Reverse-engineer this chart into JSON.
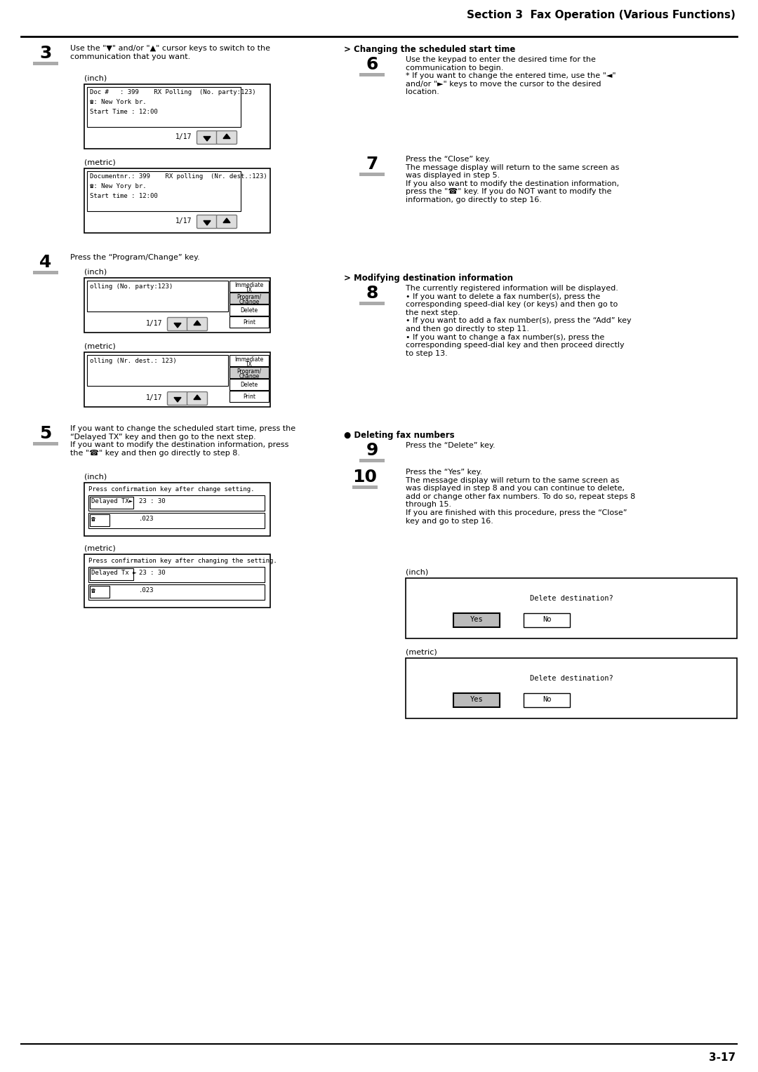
{
  "title": "Section 3  Fax Operation (Various Functions)",
  "page_num": "3-17",
  "bg": "#ffffff",
  "step3_text": "Use the \"▼\" and/or \"▲\" cursor keys to switch to the\ncommunication that you want.",
  "s3_inch": [
    "Doc #   : 399    RX Polling  (No. party:123)",
    "☎: New York br.",
    "Start Time : 12:00"
  ],
  "s3_metric": [
    "Documentnr.: 399    RX polling  (Nr. dest.:123)",
    "☎: New Yory br.",
    "Start time : 12:00"
  ],
  "step4_text": "Press the “Program/Change” key.",
  "s4_inch": [
    "olling (No. party:123)"
  ],
  "s4_metric": [
    "olling (Nr. dest.: 123)"
  ],
  "menu_items": [
    "Immediate\nTX",
    "Program/\nChange",
    "Delete",
    "Print"
  ],
  "step5_text": "If you want to change the scheduled start time, press the\n“Delayed TX” key and then go to the next step.\nIf you want to modify the destination information, press\nthe \"☎\" key and then go directly to step 8.",
  "s5_inch_top": "Press confirmation key after change setting.",
  "s5_inch_btn": "Delayed TX►",
  "s5_inch_time": "23 : 30",
  "s5_inch_fax": "☎",
  "s5_inch_num": ".023",
  "s5_metric_top": "Press confirmation key after changing the setting.",
  "s5_metric_btn": "Delayed Tx ►",
  "s5_metric_time": "23 : 30",
  "s5_metric_fax": "☎",
  "s5_metric_num": ".023",
  "step6_hdr": "> Changing the scheduled start time",
  "step6_text": "Use the keypad to enter the desired time for the\ncommunication to begin.\n* If you want to change the entered time, use the \"◄\"\nand/or \"►\" keys to move the cursor to the desired\nlocation.",
  "step7_text": "Press the “Close” key.\nThe message display will return to the same screen as\nwas displayed in step 5.\nIf you also want to modify the destination information,\npress the \"☎\" key. If you do NOT want to modify the\ninformation, go directly to step 16.",
  "step8_hdr": "> Modifying destination information",
  "step8_text": "The currently registered information will be displayed.\n• If you want to delete a fax number(s), press the\ncorresponding speed-dial key (or keys) and then go to\nthe next step.\n• If you want to add a fax number(s), press the “Add” key\nand then go directly to step 11.\n• If you want to change a fax number(s), press the\ncorresponding speed-dial key and then proceed directly\nto step 13.",
  "step9_hdr": "● Deleting fax numbers",
  "step9_text": "Press the “Delete” key.",
  "step10_text": "Press the “Yes” key.\nThe message display will return to the same screen as\nwas displayed in step 8 and you can continue to delete,\nadd or change other fax numbers. To do so, repeat steps 8\nthrough 15.\nIf you are finished with this procedure, press the “Close”\nkey and go to step 16.",
  "s10_del": "Delete destination?",
  "s10_yes": "Yes",
  "s10_no": "No"
}
